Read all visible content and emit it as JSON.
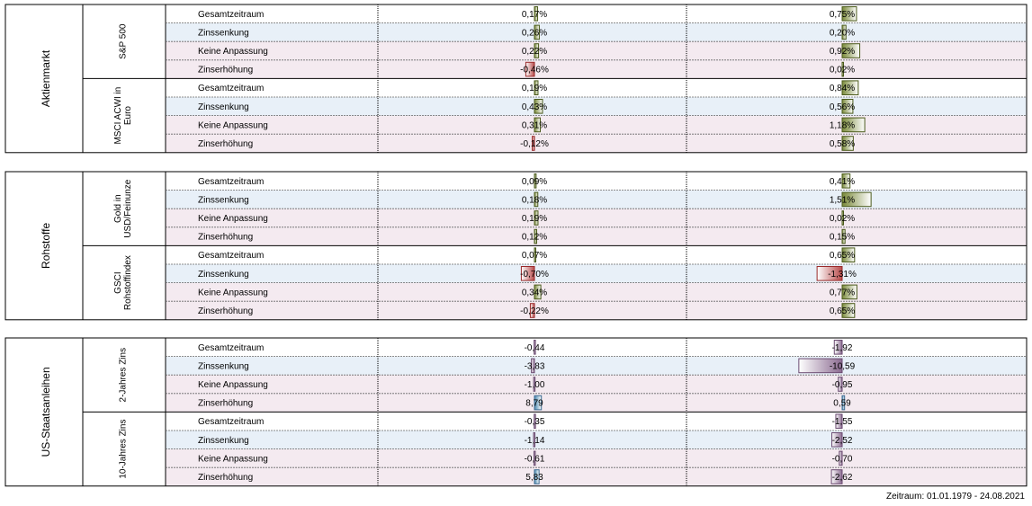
{
  "chart_data": {
    "type": "table",
    "columns": [
      "",
      "",
      "",
      "",
      ""
    ],
    "row_labels": [
      "Gesamtzeitraum",
      "Zinssenkung",
      "Keine Anpassung",
      "Zinserhöhung"
    ],
    "blocks": [
      {
        "name": "Aktienmarkt",
        "color_scheme": "green",
        "groups": [
          {
            "name": [
              "S&P 500"
            ],
            "values": [
              [
                "0,17%",
                "0,75%"
              ],
              [
                "0,26%",
                "0,20%"
              ],
              [
                "0,22%",
                "0,92%"
              ],
              [
                "-0,46%",
                "0,02%"
              ]
            ]
          },
          {
            "name": [
              "MSCI ACWI in",
              "Euro"
            ],
            "values": [
              [
                "0,19%",
                "0,84%"
              ],
              [
                "0,43%",
                "0,56%"
              ],
              [
                "0,31%",
                "1,18%"
              ],
              [
                "-0,12%",
                "0,58%"
              ]
            ]
          }
        ]
      },
      {
        "name": "Rohstoffe",
        "color_scheme": "green",
        "groups": [
          {
            "name": [
              "Gold in",
              "USD/Feinunze"
            ],
            "values": [
              [
                "0,09%",
                "0,41%"
              ],
              [
                "0,18%",
                "1,51%"
              ],
              [
                "0,19%",
                "0,02%"
              ],
              [
                "0,12%",
                "0,15%"
              ]
            ]
          },
          {
            "name": [
              "GSCI",
              "Rohstoffindex"
            ],
            "values": [
              [
                "0,07%",
                "0,65%"
              ],
              [
                "-0,70%",
                "-1,31%"
              ],
              [
                "0,34%",
                "0,77%"
              ],
              [
                "-0,22%",
                "0,65%"
              ]
            ]
          }
        ]
      },
      {
        "name": "US-Staatsanleihen",
        "color_scheme": "purple",
        "groups": [
          {
            "name": [
              "2-Jahres Zins"
            ],
            "values": [
              [
                "-0,44",
                "-1,92"
              ],
              [
                "-3,83",
                "-10,59"
              ],
              [
                "-1,00",
                "-0,95"
              ],
              [
                "8,79",
                "0,59"
              ]
            ]
          },
          {
            "name": [
              "10-Jahres Zins"
            ],
            "values": [
              [
                "-0,35",
                "-1,55"
              ],
              [
                "-1,14",
                "-2,52"
              ],
              [
                "-0,61",
                "-0,70"
              ],
              [
                "5,83",
                "-2,62"
              ]
            ]
          }
        ]
      }
    ],
    "scales": {
      "green_col1": 0.048,
      "green_col2": 0.047,
      "purple_col1": 1.14,
      "purple_col2": 0.22
    },
    "colors": {
      "pos_green": "#7a8a3a",
      "neg_red": "#b84a4a",
      "neg_purple": "#8a6a90",
      "pos_blue": "#4a88b0",
      "row_stripe_blue": "#e8f0f8",
      "row_stripe_pink": "#f4eaf0"
    }
  },
  "footer": "Zeitraum: 01.01.1979 - 24.08.2021"
}
